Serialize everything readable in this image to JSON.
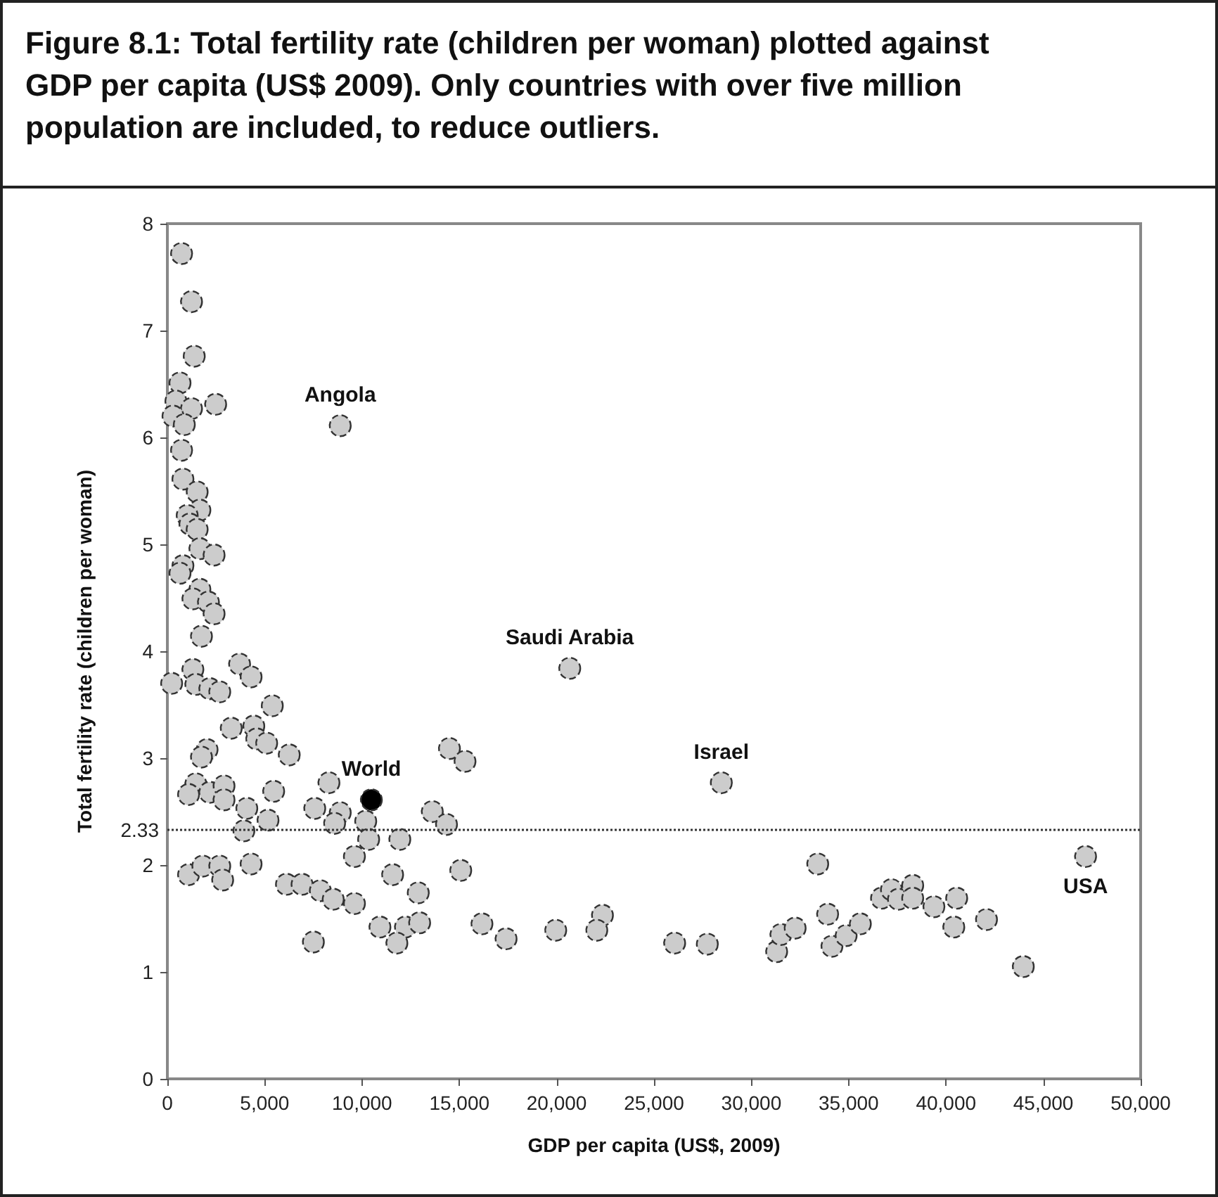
{
  "chart_data": {
    "type": "scatter",
    "title": "Figure 8.1: Total fertility rate (children per woman) plotted against GDP per capita (US$ 2009). Only countries with over five million population are included, to reduce outliers.",
    "xlabel": "GDP per capita (US$, 2009)",
    "ylabel": "Total fertility rate (children per woman)",
    "series": [
      {
        "color": "#cccccc",
        "x": [
          730,
          1240,
          1380,
          650,
          440,
          1240,
          2480,
          290,
          870,
          8880,
          730,
          800,
          1530,
          1670,
          1020,
          1160,
          1530,
          1670,
          2400,
          800,
          650,
          1670,
          1310,
          2110,
          2400,
          1750,
          1310,
          3710,
          4300,
          220,
          1460,
          2180,
          2690,
          5390,
          3280,
          4440,
          4590,
          5100,
          6260,
          2040,
          1750,
          8300,
          1460,
          1090,
          2180,
          2910,
          2910,
          4080,
          5460,
          7570,
          8880,
          8590,
          5170,
          3930,
          10190,
          10340,
          11940,
          9610,
          1090,
          1820,
          2690,
          2840,
          4300,
          11570,
          12890,
          6120,
          6920,
          7860,
          8520,
          9610,
          7500,
          10920,
          12230,
          12960,
          11790,
          20670,
          14490,
          15290,
          28460,
          13610,
          14340,
          15070,
          16160,
          17400,
          19950,
          22350,
          22060,
          26060,
          27740,
          33410,
          47170,
          31300,
          31520,
          32250,
          33920,
          34140,
          34870,
          35600,
          36690,
          37200,
          37560,
          38290,
          38290,
          39380,
          40550,
          40400,
          42080,
          43970
        ],
        "values": [
          7.72,
          7.27,
          6.76,
          6.51,
          6.34,
          6.27,
          6.31,
          6.2,
          6.12,
          6.11,
          5.88,
          5.61,
          5.49,
          5.32,
          5.27,
          5.19,
          5.14,
          4.96,
          4.9,
          4.8,
          4.73,
          4.58,
          4.49,
          4.46,
          4.35,
          4.14,
          3.83,
          3.88,
          3.76,
          3.7,
          3.69,
          3.65,
          3.62,
          3.49,
          3.28,
          3.3,
          3.18,
          3.14,
          3.03,
          3.08,
          3.01,
          2.77,
          2.76,
          2.66,
          2.68,
          2.74,
          2.61,
          2.53,
          2.69,
          2.53,
          2.49,
          2.39,
          2.42,
          2.32,
          2.41,
          2.24,
          2.24,
          2.08,
          1.91,
          1.99,
          1.99,
          1.86,
          2.01,
          1.91,
          1.74,
          1.82,
          1.82,
          1.76,
          1.68,
          1.64,
          1.28,
          1.42,
          1.42,
          1.46,
          1.27,
          3.84,
          3.09,
          2.97,
          2.77,
          2.5,
          2.38,
          1.95,
          1.45,
          1.31,
          1.39,
          1.53,
          1.39,
          1.27,
          1.26,
          2.01,
          2.08,
          1.19,
          1.35,
          1.41,
          1.54,
          1.24,
          1.34,
          1.45,
          1.69,
          1.77,
          1.68,
          1.81,
          1.69,
          1.61,
          1.69,
          1.42,
          1.49,
          1.05
        ]
      },
      {
        "color": "#000000",
        "x": [
          10480
        ],
        "values": [
          2.61
        ]
      }
    ],
    "annotations": [
      {
        "text": "Angola",
        "x": 8880,
        "y": 6.11
      },
      {
        "text": "World",
        "x": 10480,
        "y": 2.61
      },
      {
        "text": "Saudi Arabia",
        "x": 20670,
        "y": 3.84
      },
      {
        "text": "Israel",
        "x": 28460,
        "y": 2.77
      },
      {
        "text": "USA",
        "x": 47170,
        "y": 2.08
      }
    ],
    "ref_lines": [
      {
        "axis": "y",
        "value": 2.33,
        "label": "2.33",
        "line_style": "dotted",
        "color": "#333333"
      }
    ],
    "xlim": [
      0,
      50000
    ],
    "xticks": [
      0,
      {
        "value": 5000,
        "label": "5,000"
      },
      {
        "value": 10000,
        "label": "10,000"
      },
      {
        "value": 15000,
        "label": "15,000"
      },
      {
        "value": 20000,
        "label": "20,000"
      },
      {
        "value": 25000,
        "label": "25,000"
      },
      {
        "value": 30000,
        "label": "30,000"
      },
      {
        "value": 35000,
        "label": "35,000"
      },
      {
        "value": 40000,
        "label": "40,000"
      },
      {
        "value": 45000,
        "label": "45,000"
      },
      {
        "value": 50000,
        "label": "50,000"
      }
    ],
    "ylim": [
      0,
      8
    ],
    "yticks": [
      0,
      1,
      2,
      3,
      4,
      5,
      6,
      7,
      8
    ],
    "grid": false,
    "marker": "circle"
  }
}
